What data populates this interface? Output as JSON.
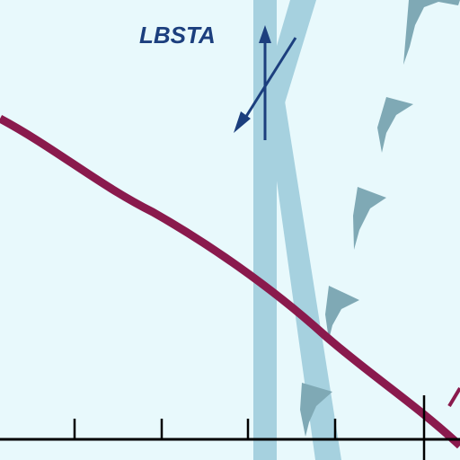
{
  "chart": {
    "fix_label": "LBSTA"
  },
  "colors": {
    "background": "#e8f9fc",
    "airway_light": "#a6d1df",
    "airway_dark": "#7fa9b5",
    "route": "#8a1a4d",
    "fix_marker": "#1c3f7e",
    "ground": "#000000"
  }
}
